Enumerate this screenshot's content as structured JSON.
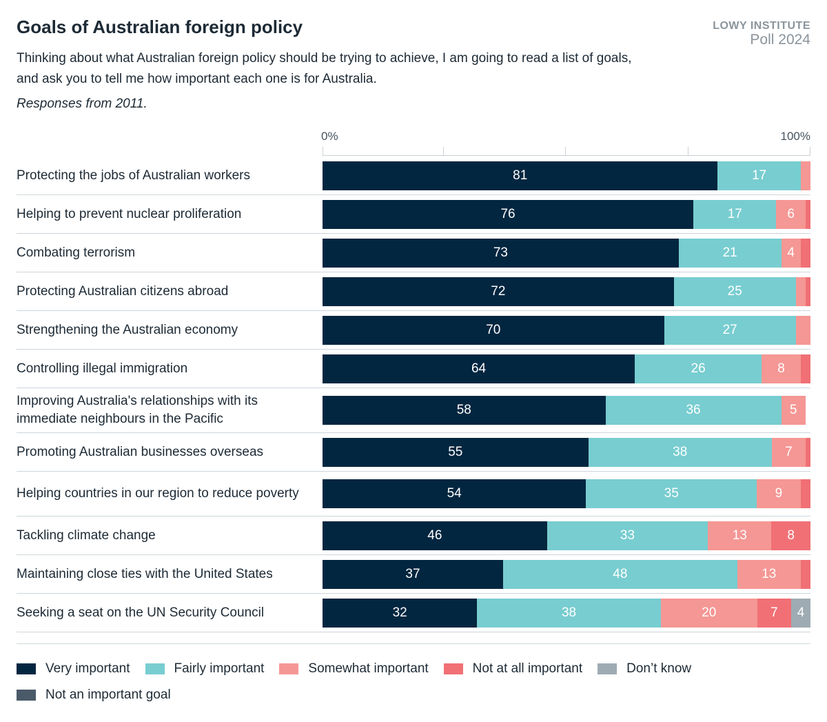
{
  "header": {
    "title": "Goals of Australian foreign policy",
    "brand_line1": "LOWY INSTITUTE",
    "brand_line2": "Poll 2024",
    "subtitle": "Thinking about what Australian foreign policy should be trying to achieve, I am going to read a list of goals, and ask you to tell me how important each one is for Australia.",
    "note": "Responses from 2011."
  },
  "chart_data": {
    "type": "bar",
    "orientation": "horizontal",
    "stacked": true,
    "xlim": [
      0,
      100
    ],
    "tick_labels": [
      "0%",
      "100%"
    ],
    "categories": [
      "Protecting the jobs of Australian workers",
      "Helping to prevent nuclear proliferation",
      "Combating terrorism",
      "Protecting Australian citizens abroad",
      "Strengthening the Australian economy",
      "Controlling illegal immigration",
      "Improving Australia's relationships with its immediate neighbours in the Pacific",
      "Promoting Australian businesses overseas",
      "Helping countries in our region to reduce poverty",
      "Tackling climate change",
      "Maintaining close ties with the United States",
      "Seeking a seat on the UN Security Council"
    ],
    "series": [
      {
        "name": "Very important",
        "color": "#022640",
        "values": [
          81,
          76,
          73,
          72,
          70,
          64,
          58,
          55,
          54,
          46,
          37,
          32
        ]
      },
      {
        "name": "Fairly important",
        "color": "#78cdd0",
        "values": [
          17,
          17,
          21,
          25,
          27,
          26,
          36,
          38,
          35,
          33,
          48,
          38
        ]
      },
      {
        "name": "Somewhat important",
        "color": "#f59794",
        "values": [
          2,
          6,
          4,
          2,
          3,
          8,
          5,
          7,
          9,
          13,
          13,
          20
        ]
      },
      {
        "name": "Not at all important",
        "color": "#f07075",
        "values": [
          0,
          1,
          2,
          1,
          0,
          2,
          0,
          1,
          2,
          8,
          2,
          7
        ]
      },
      {
        "name": "Don’t know",
        "color": "#9eabb3",
        "values": [
          0,
          0,
          0,
          0,
          0,
          0,
          0,
          0,
          0,
          0,
          0,
          4
        ]
      },
      {
        "name": "Not an important goal",
        "color": "#4b5a69",
        "values": [
          0,
          0,
          0,
          0,
          0,
          0,
          0,
          0,
          0,
          0,
          0,
          0
        ]
      }
    ],
    "legend": "bottom"
  }
}
